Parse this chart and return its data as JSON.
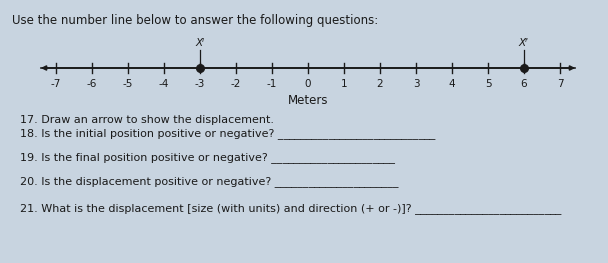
{
  "title": "Use the number line below to answer the following questions:",
  "title_fontsize": 8.5,
  "background_color": "#c8d4e0",
  "number_line_min": -7,
  "number_line_max": 7,
  "xi_value": -3,
  "xf_value": 6,
  "xi_label": "Xᴵ",
  "xf_label": "Xᶠ",
  "axis_label": "Meters",
  "tick_labels": [
    -7,
    -6,
    -5,
    -4,
    -3,
    -2,
    -1,
    0,
    1,
    2,
    3,
    4,
    5,
    6,
    7
  ],
  "q17": "17. Draw an arrow to show the displacement.",
  "q18": "18. Is the initial position positive or negative? ____________________________",
  "q19": "19. Is the final position positive or negative? ______________________",
  "q20": "20. Is the displacement positive or negative? ______________________",
  "q21": "21. What is the displacement [size (with units) and direction (+ or -)]? __________________________",
  "dot_color": "#1a1a1a",
  "line_color": "#1a1a1a",
  "text_color": "#1a1a1a",
  "tick_fontsize": 7.5,
  "label_fontsize": 8.5,
  "question_fontsize": 8.0
}
